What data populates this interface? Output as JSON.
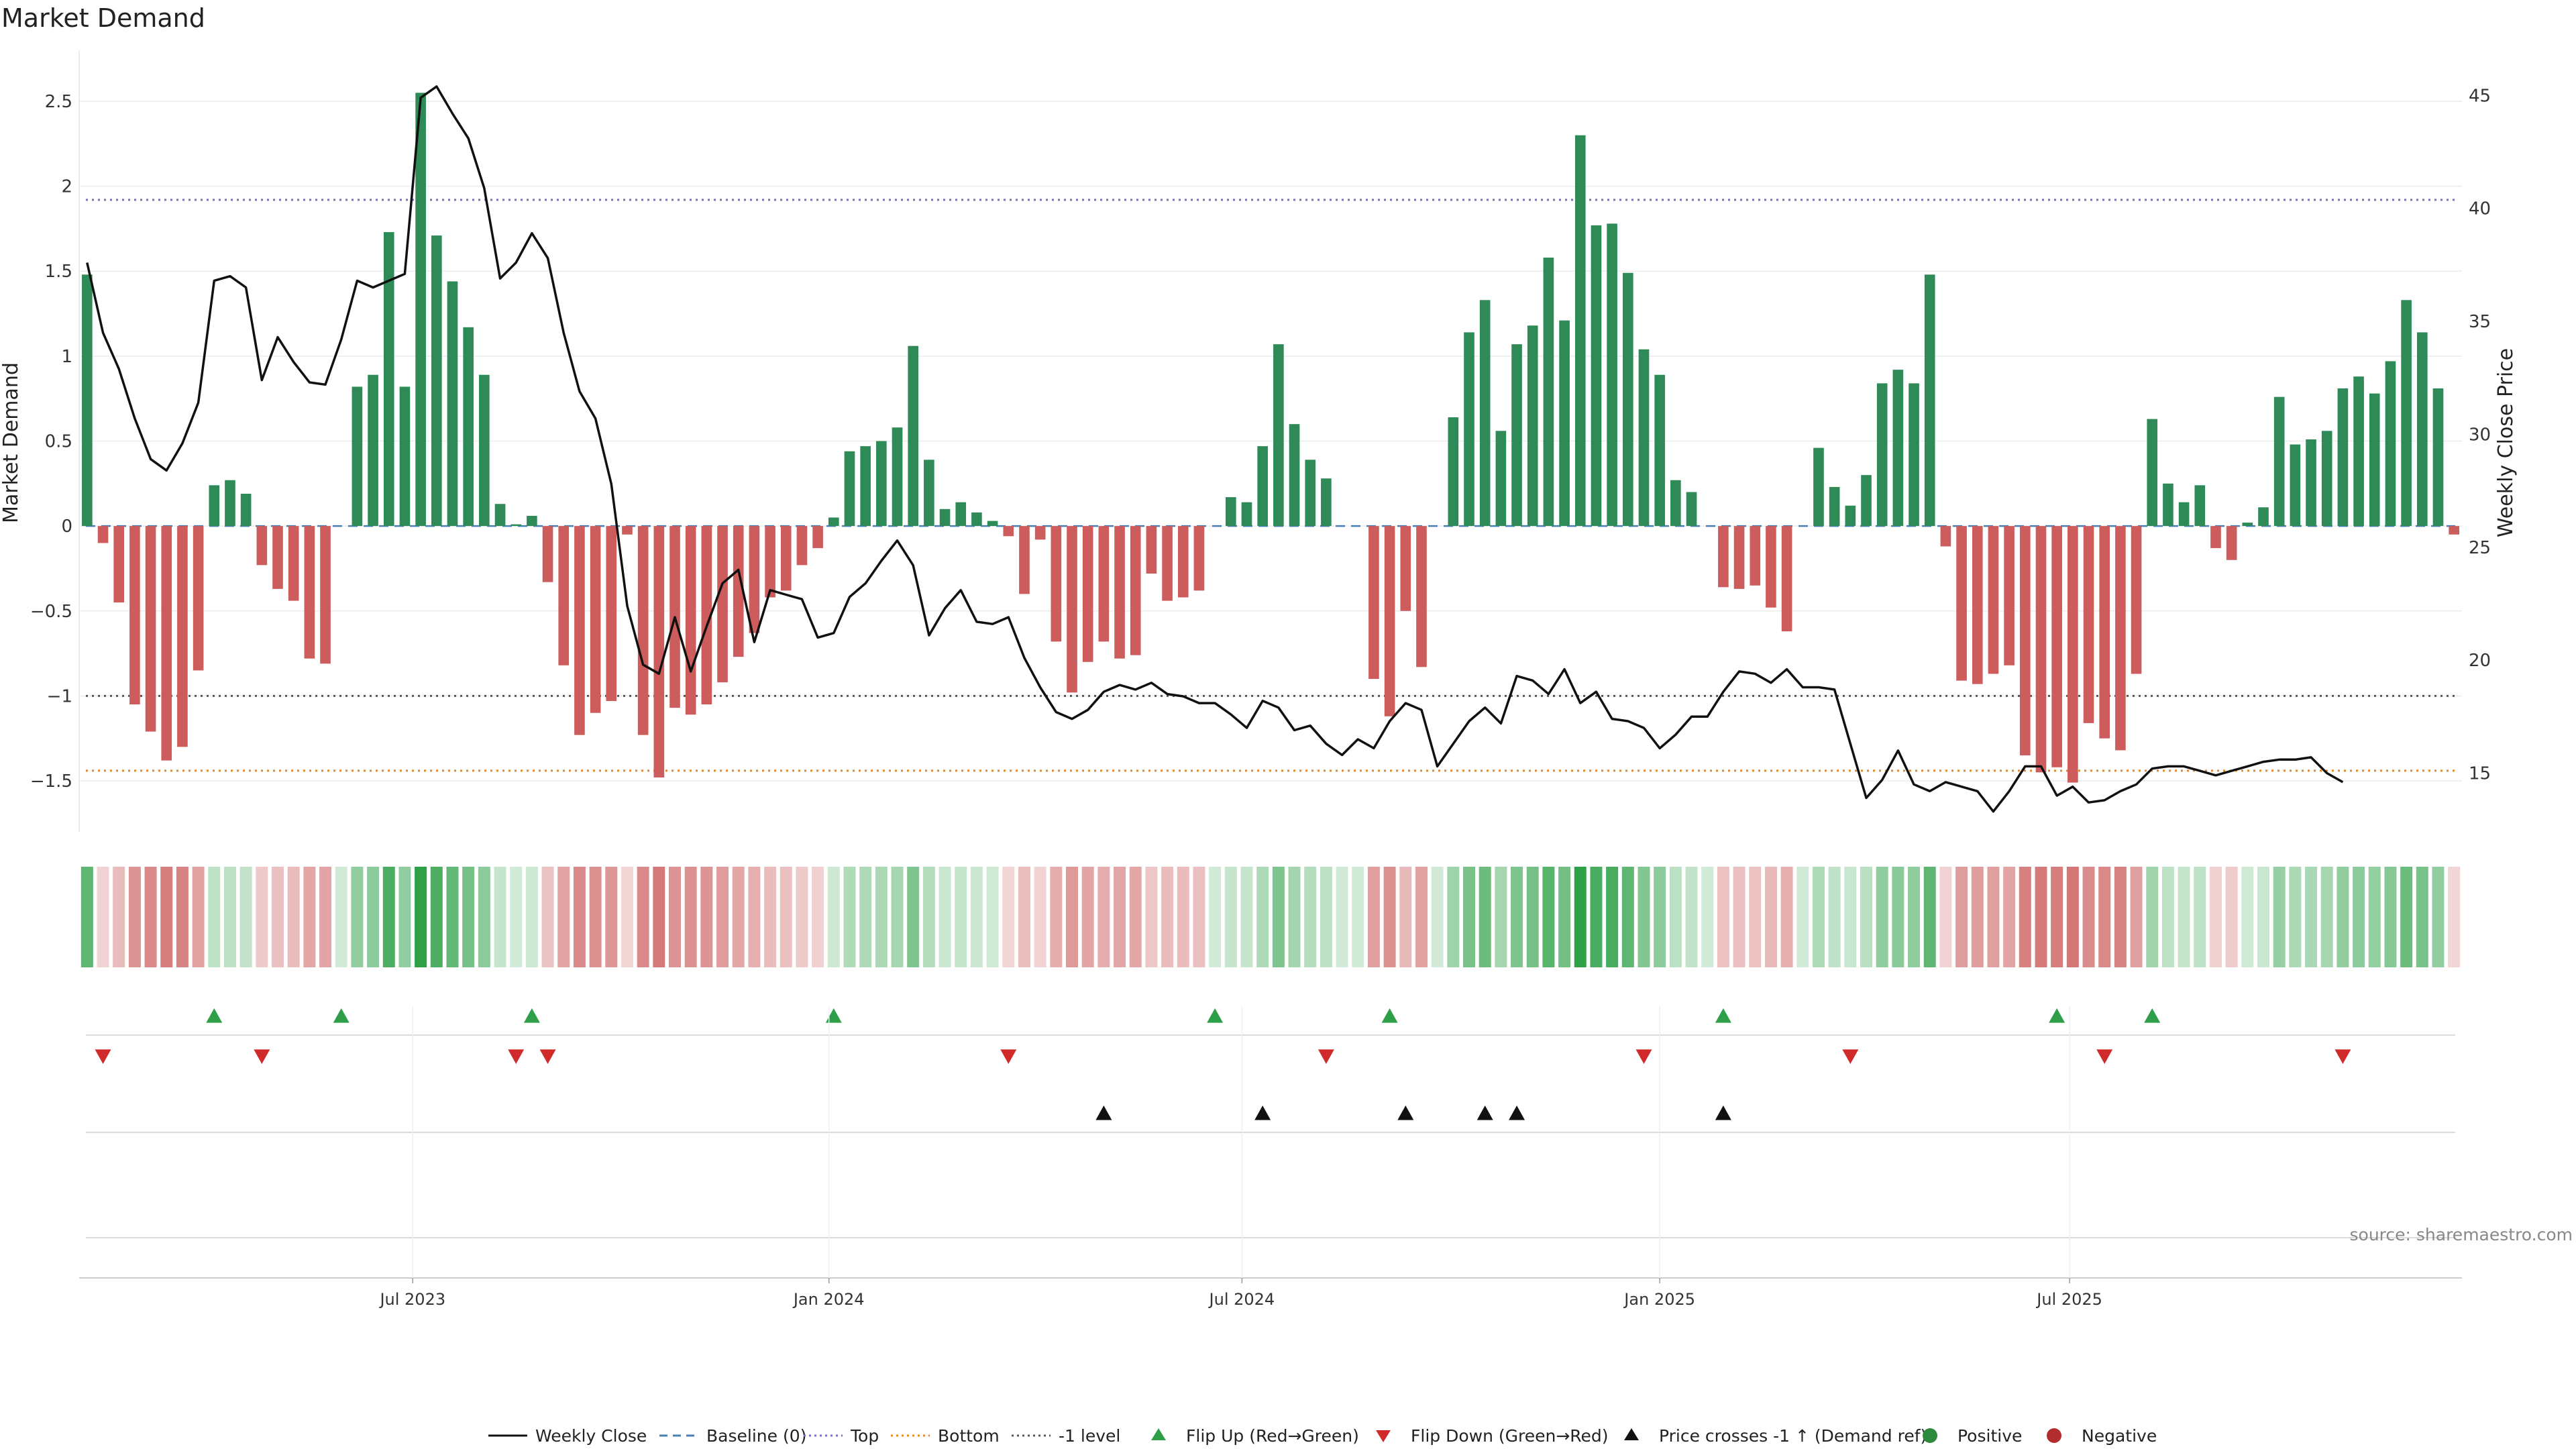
{
  "chart_data": {
    "type": "bar",
    "title": "Market Demand",
    "ylabel": "Market Demand",
    "y2label": "Weekly Close Price",
    "ylim": [
      -1.8,
      2.8
    ],
    "y2lim": [
      12.4,
      47.0
    ],
    "yticks": [
      -1.5,
      -1,
      -0.5,
      0,
      0.5,
      1,
      1.5,
      2,
      2.5
    ],
    "yticklabels": [
      "−1.5",
      "−1",
      "−0.5",
      "0",
      "0.5",
      "1",
      "1.5",
      "2",
      "2.5"
    ],
    "y2ticks": [
      15,
      20,
      25,
      30,
      35,
      40,
      45
    ],
    "y2ticklabels": [
      "15",
      "20",
      "25",
      "30",
      "35",
      "40",
      "45"
    ],
    "xticks": [
      {
        "week": 20.5,
        "label": "Jul 2023"
      },
      {
        "week": 46.7,
        "label": "Jan 2024"
      },
      {
        "week": 72.7,
        "label": "Jul 2024"
      },
      {
        "week": 99,
        "label": "Jan 2025"
      },
      {
        "week": 124.8,
        "label": "Jul 2025"
      }
    ],
    "reference_lines": {
      "top": 1.92,
      "bottom": -1.44,
      "minus_one": -1.0,
      "baseline": 0
    },
    "demand": [
      1.48,
      -0.1,
      -0.45,
      -1.05,
      -1.21,
      -1.38,
      -1.3,
      -0.85,
      0.24,
      0.27,
      0.19,
      -0.23,
      -0.37,
      -0.44,
      -0.78,
      -0.81,
      0.0,
      0.82,
      0.89,
      1.73,
      0.82,
      2.55,
      1.71,
      1.44,
      1.17,
      0.89,
      0.13,
      0.01,
      0.06,
      -0.33,
      -0.82,
      -1.23,
      -1.1,
      -1.03,
      -0.05,
      -1.23,
      -1.48,
      -1.07,
      -1.11,
      -1.05,
      -0.92,
      -0.77,
      -0.63,
      -0.42,
      -0.38,
      -0.23,
      -0.13,
      0.05,
      0.44,
      0.47,
      0.5,
      0.58,
      1.06,
      0.39,
      0.1,
      0.14,
      0.08,
      0.03,
      -0.06,
      -0.4,
      -0.08,
      -0.68,
      -0.98,
      -0.8,
      -0.68,
      -0.78,
      -0.76,
      -0.28,
      -0.44,
      -0.42,
      -0.38,
      0.0,
      0.17,
      0.14,
      0.47,
      1.07,
      0.6,
      0.39,
      0.28,
      0.0,
      0.0,
      -0.9,
      -1.12,
      -0.5,
      -0.83,
      0.0,
      0.64,
      1.14,
      1.33,
      0.56,
      1.07,
      1.18,
      1.58,
      1.21,
      2.3,
      1.77,
      1.78,
      1.49,
      1.04,
      0.89,
      0.27,
      0.2,
      0.0,
      -0.36,
      -0.37,
      -0.35,
      -0.48,
      -0.62,
      0.0,
      0.46,
      0.23,
      0.12,
      0.3,
      0.84,
      0.92,
      0.84,
      1.48,
      -0.12,
      -0.91,
      -0.93,
      -0.87,
      -0.82,
      -1.35,
      -1.45,
      -1.42,
      -1.51,
      -1.16,
      -1.25,
      -1.32,
      -0.87,
      0.63,
      0.25,
      0.14,
      0.24,
      -0.13,
      -0.2,
      0.02,
      0.11,
      0.76,
      0.48,
      0.51,
      0.56,
      0.81,
      0.88,
      0.78,
      0.97,
      1.33,
      1.14,
      0.81,
      -0.05
    ],
    "close_price": [
      37.6,
      34.5,
      32.9,
      30.7,
      28.9,
      28.4,
      29.6,
      31.4,
      36.8,
      37.0,
      36.5,
      32.4,
      34.3,
      33.2,
      32.3,
      32.2,
      34.2,
      36.8,
      36.5,
      36.8,
      37.1,
      44.9,
      45.4,
      44.2,
      43.1,
      40.9,
      36.9,
      37.6,
      38.9,
      37.8,
      34.5,
      31.9,
      30.7,
      27.8,
      22.4,
      19.8,
      19.4,
      21.9,
      19.5,
      21.5,
      23.4,
      24.0,
      20.8,
      23.1,
      22.9,
      22.7,
      21.0,
      21.2,
      22.8,
      23.4,
      24.4,
      25.3,
      24.2,
      21.1,
      22.3,
      23.1,
      21.7,
      21.6,
      21.9,
      20.1,
      18.8,
      17.7,
      17.4,
      17.8,
      18.6,
      18.9,
      18.7,
      19.0,
      18.5,
      18.4,
      18.1,
      18.1,
      17.6,
      17.0,
      18.2,
      17.9,
      16.9,
      17.1,
      16.3,
      15.8,
      16.5,
      16.1,
      17.3,
      18.1,
      17.8,
      15.3,
      16.3,
      17.3,
      17.9,
      17.2,
      19.3,
      19.1,
      18.5,
      19.6,
      18.1,
      18.6,
      17.4,
      17.3,
      17.0,
      16.1,
      16.7,
      17.5,
      17.5,
      18.6,
      19.5,
      19.4,
      19.0,
      19.6,
      18.8,
      18.8,
      18.7,
      16.3,
      13.9,
      14.7,
      16.0,
      14.5,
      14.2,
      14.6,
      14.4,
      14.2,
      13.3,
      14.2,
      15.3,
      15.3,
      14.0,
      14.4,
      13.7,
      13.8,
      14.2,
      14.5,
      15.2,
      15.3,
      15.3,
      15.1,
      14.9,
      15.1,
      15.3,
      15.5,
      15.6,
      15.6,
      15.7,
      15.0,
      14.6
    ],
    "flip_up_weeks": [
      8,
      16,
      28,
      47,
      71,
      82,
      103,
      124,
      130
    ],
    "flip_down_weeks": [
      1,
      11,
      27,
      29,
      58,
      78,
      98,
      111,
      127,
      142
    ],
    "price_cross_weeks": [
      64,
      74,
      83,
      88,
      90,
      103
    ],
    "legend": [
      {
        "label": "Weekly Close",
        "style": "solid-line",
        "color": "#111111"
      },
      {
        "label": "Baseline (0)",
        "style": "dashed-line",
        "color": "#4a7fb5"
      },
      {
        "label": "Top",
        "style": "dotted-line",
        "color": "#7b6fb8"
      },
      {
        "label": "Bottom",
        "style": "dotted-line",
        "color": "#e08a2e"
      },
      {
        "label": "-1 level",
        "style": "dotted-line",
        "color": "#555555"
      },
      {
        "label": "Flip Up (Red→Green)",
        "style": "triangle-up",
        "color": "#2e9e48"
      },
      {
        "label": "Flip Down (Green→Red)",
        "style": "triangle-down",
        "color": "#d12a2a"
      },
      {
        "label": "Price crosses -1 ↑ (Demand ref)",
        "style": "triangle-up",
        "color": "#111111"
      },
      {
        "label": "Positive",
        "style": "dot",
        "color": "#2e8b3e"
      },
      {
        "label": "Negative",
        "style": "dot",
        "color": "#b22d2d"
      }
    ],
    "source": "source: sharemaestro.com"
  },
  "colors": {
    "positive_bar": "#2e8b57",
    "negative_bar": "#cd5c5c",
    "price_line": "#111111",
    "top_line": "#7b6fb8",
    "bottom_line": "#e08a2e",
    "minus_one_line": "#555555",
    "baseline": "#4a7fb5",
    "flip_up": "#2e9e48",
    "flip_down": "#d12a2a",
    "price_cross": "#111111"
  }
}
